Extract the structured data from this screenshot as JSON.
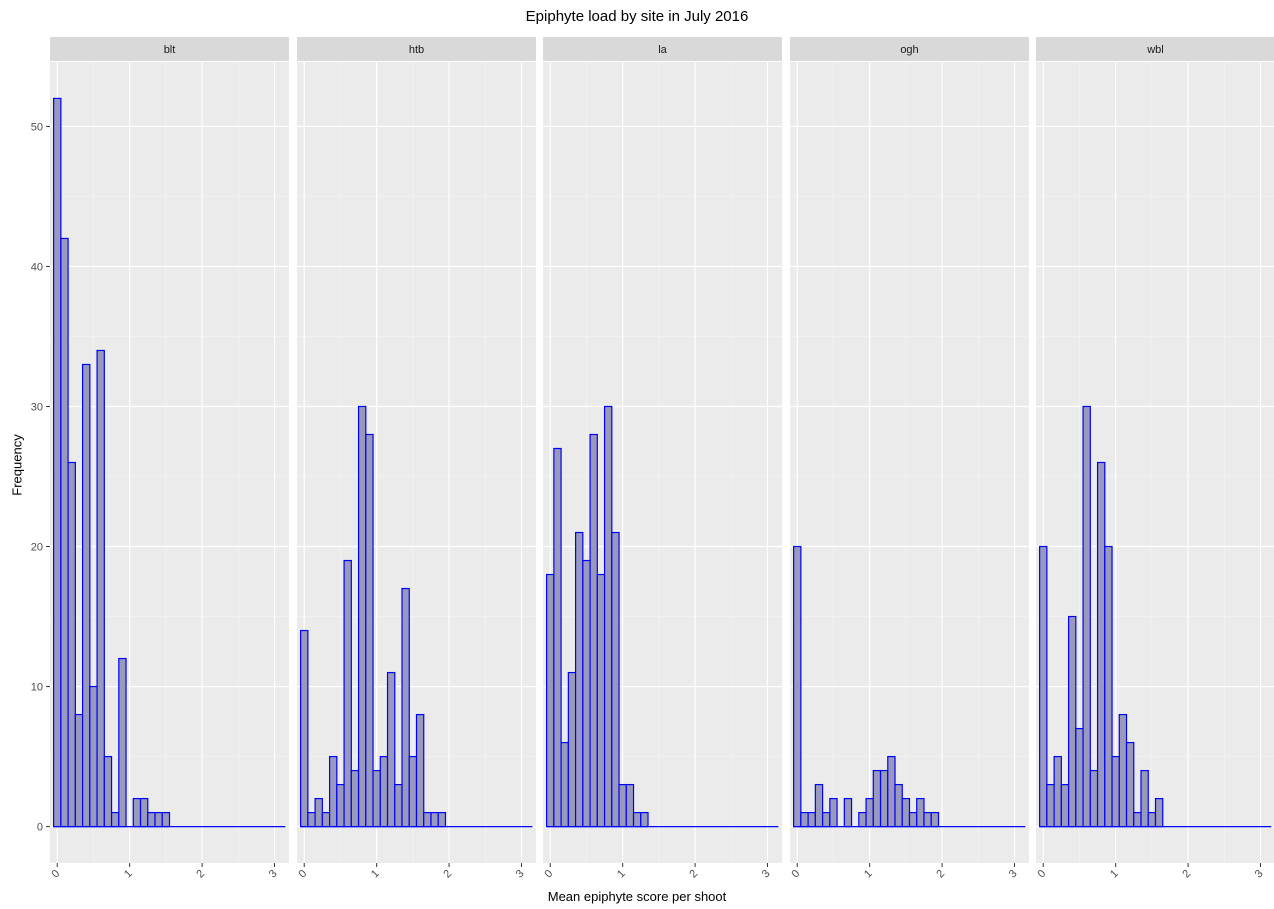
{
  "chart_data": {
    "type": "bar",
    "title": "Epiphyte load by site in July 2016",
    "xlabel": "Mean epiphyte score per shoot",
    "ylabel": "Frequency",
    "xlim": [
      -0.1,
      3.2
    ],
    "ylim": [
      -2.6,
      54.6
    ],
    "x_ticks": [
      "0",
      "1",
      "2",
      "3"
    ],
    "y_ticks": [
      "0",
      "10",
      "20",
      "30",
      "40",
      "50"
    ],
    "bin_width": 0.1,
    "fill_color": "#9999bb",
    "edge_color": "#0000ff",
    "panel_background": "#ebebeb",
    "strip_background": "#d9d9d9",
    "grid": true,
    "facets": [
      {
        "name": "blt",
        "x": [
          0.0,
          0.1,
          0.2,
          0.3,
          0.4,
          0.5,
          0.6,
          0.7,
          0.8,
          0.9,
          1.0,
          1.1,
          1.2,
          1.3,
          1.4,
          1.5,
          1.6,
          1.7,
          1.8,
          1.9,
          2.0,
          2.1,
          2.2,
          2.3,
          2.4,
          2.5,
          2.6,
          2.7,
          2.8,
          2.9,
          3.0,
          3.1
        ],
        "values": [
          52,
          42,
          26,
          8,
          33,
          10,
          34,
          5,
          1,
          12,
          0,
          2,
          2,
          1,
          1,
          1,
          0,
          0,
          0,
          0,
          0,
          0,
          0,
          0,
          0,
          0,
          0,
          0,
          0,
          0,
          0,
          0
        ]
      },
      {
        "name": "htb",
        "x": [
          0.0,
          0.1,
          0.2,
          0.3,
          0.4,
          0.5,
          0.6,
          0.7,
          0.8,
          0.9,
          1.0,
          1.1,
          1.2,
          1.3,
          1.4,
          1.5,
          1.6,
          1.7,
          1.8,
          1.9,
          2.0,
          2.1,
          2.2,
          2.3,
          2.4,
          2.5,
          2.6,
          2.7,
          2.8,
          2.9,
          3.0,
          3.1
        ],
        "values": [
          14,
          1,
          2,
          1,
          5,
          3,
          19,
          4,
          30,
          28,
          4,
          5,
          11,
          3,
          17,
          5,
          8,
          1,
          1,
          1,
          0,
          0,
          0,
          0,
          0,
          0,
          0,
          0,
          0,
          0,
          0,
          0
        ]
      },
      {
        "name": "la",
        "x": [
          0.0,
          0.1,
          0.2,
          0.3,
          0.4,
          0.5,
          0.6,
          0.7,
          0.8,
          0.9,
          1.0,
          1.1,
          1.2,
          1.3,
          1.4,
          1.5,
          1.6,
          1.7,
          1.8,
          1.9,
          2.0,
          2.1,
          2.2,
          2.3,
          2.4,
          2.5,
          2.6,
          2.7,
          2.8,
          2.9,
          3.0,
          3.1
        ],
        "values": [
          18,
          27,
          6,
          11,
          21,
          19,
          28,
          18,
          30,
          21,
          3,
          3,
          1,
          1,
          0,
          0,
          0,
          0,
          0,
          0,
          0,
          0,
          0,
          0,
          0,
          0,
          0,
          0,
          0,
          0,
          0,
          0
        ]
      },
      {
        "name": "ogh",
        "x": [
          0.0,
          0.1,
          0.2,
          0.3,
          0.4,
          0.5,
          0.6,
          0.7,
          0.8,
          0.9,
          1.0,
          1.1,
          1.2,
          1.3,
          1.4,
          1.5,
          1.6,
          1.7,
          1.8,
          1.9,
          2.0,
          2.1,
          2.2,
          2.3,
          2.4,
          2.5,
          2.6,
          2.7,
          2.8,
          2.9,
          3.0,
          3.1
        ],
        "values": [
          20,
          1,
          1,
          3,
          1,
          2,
          0,
          2,
          0,
          1,
          2,
          4,
          4,
          5,
          3,
          2,
          1,
          2,
          1,
          1,
          0,
          0,
          0,
          0,
          0,
          0,
          0,
          0,
          0,
          0,
          0,
          0
        ]
      },
      {
        "name": "wbl",
        "x": [
          0.0,
          0.1,
          0.2,
          0.3,
          0.4,
          0.5,
          0.6,
          0.7,
          0.8,
          0.9,
          1.0,
          1.1,
          1.2,
          1.3,
          1.4,
          1.5,
          1.6,
          1.7,
          1.8,
          1.9,
          2.0,
          2.1,
          2.2,
          2.3,
          2.4,
          2.5,
          2.6,
          2.7,
          2.8,
          2.9,
          3.0,
          3.1
        ],
        "values": [
          20,
          3,
          5,
          3,
          15,
          7,
          30,
          4,
          26,
          20,
          5,
          8,
          6,
          1,
          4,
          1,
          2,
          0,
          0,
          0,
          0,
          0,
          0,
          0,
          0,
          0,
          0,
          0,
          0,
          0,
          0,
          0
        ]
      }
    ]
  }
}
